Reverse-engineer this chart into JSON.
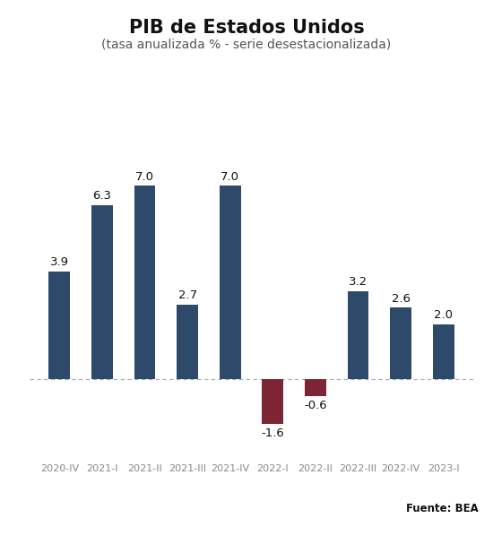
{
  "title": "PIB de Estados Unidos",
  "subtitle": "(tasa anualizada % - serie desestacionalizada)",
  "source": "Fuente: BEA",
  "categories": [
    "2020-IV",
    "2021-I",
    "2021-II",
    "2021-III",
    "2021-IV",
    "2022-I",
    "2022-II",
    "2022-III",
    "2022-IV",
    "2023-I"
  ],
  "values": [
    3.9,
    6.3,
    7.0,
    2.7,
    7.0,
    -1.6,
    -0.6,
    3.2,
    2.6,
    2.0
  ],
  "bar_color_positive": "#2d4a6b",
  "bar_color_negative": "#7d2535",
  "background_color": "#ffffff",
  "title_fontsize": 15,
  "subtitle_fontsize": 10,
  "label_fontsize": 9.5,
  "tick_fontsize": 8,
  "source_fontsize": 8.5,
  "ylim": [
    -2.8,
    9.0
  ],
  "bar_width": 0.5
}
